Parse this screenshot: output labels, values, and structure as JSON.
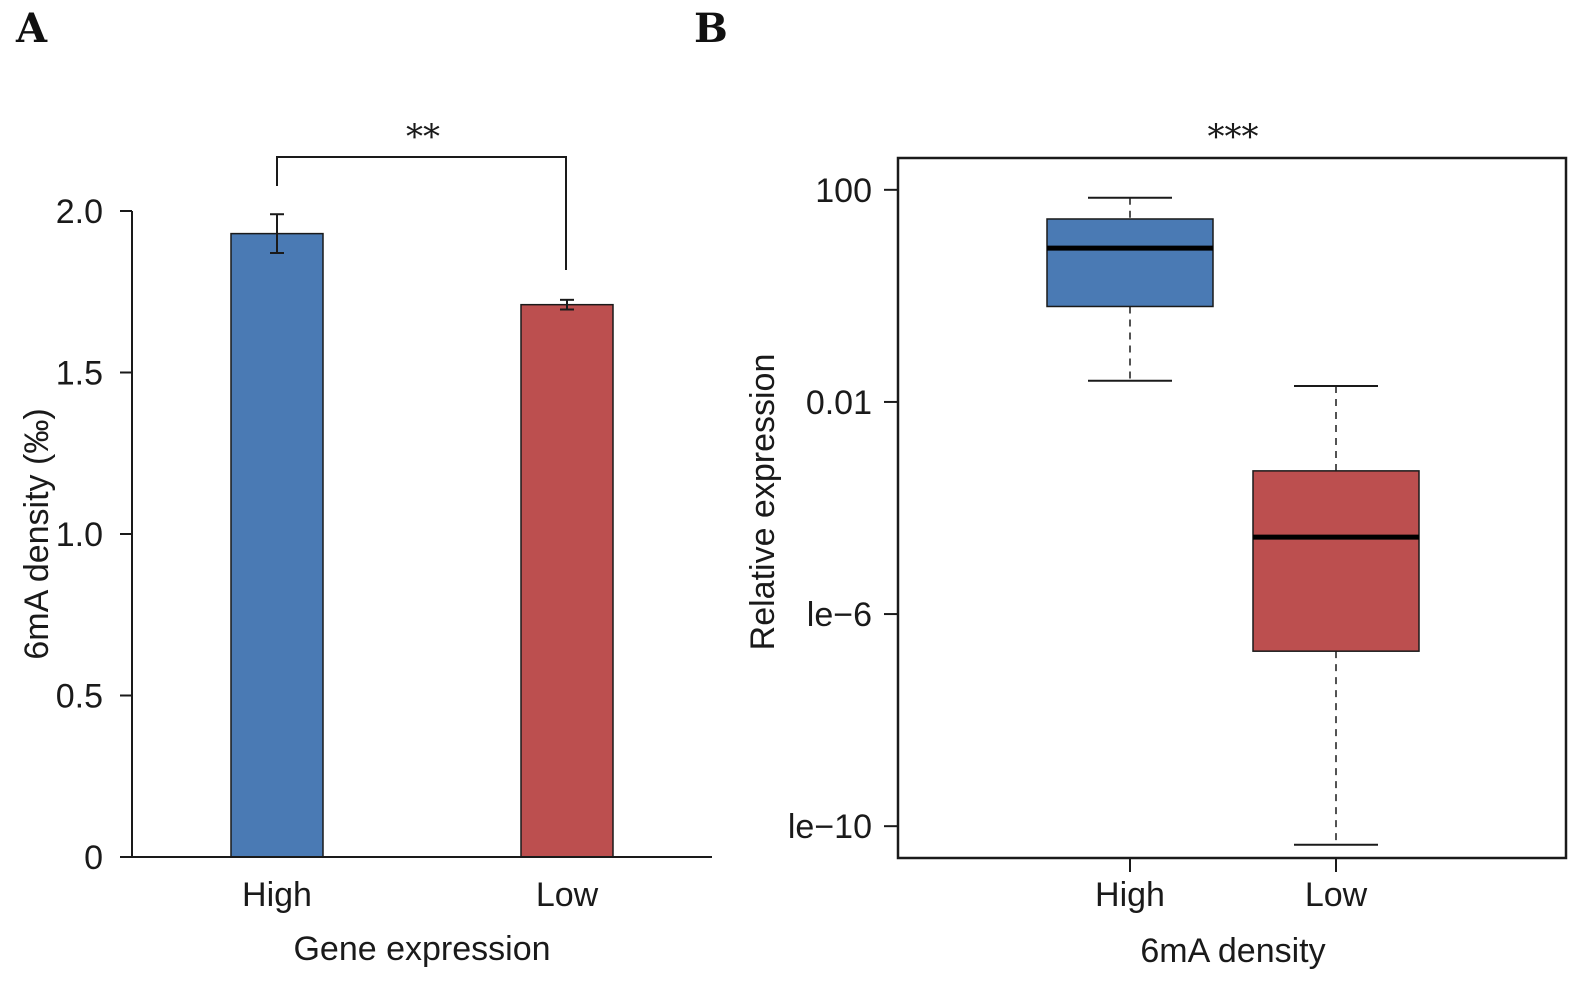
{
  "chart_data": [
    {
      "panel": "A",
      "type": "bar",
      "xlabel": "Gene expression",
      "ylabel": "6mA density (‰)",
      "categories": [
        "High",
        "Low"
      ],
      "values": [
        1.93,
        1.71
      ],
      "errors": [
        0.06,
        0.015
      ],
      "colors": [
        "#4a7ab4",
        "#bc4f4f"
      ],
      "ylim": [
        0,
        2.0
      ],
      "yticks": [
        0,
        0.5,
        1.0,
        1.5,
        2.0
      ],
      "ytick_labels": [
        "0",
        "0.5",
        "1.0",
        "1.5",
        "2.0"
      ],
      "significance": "**"
    },
    {
      "panel": "B",
      "type": "boxplot",
      "xlabel": "6mA density",
      "ylabel": "Relative expression",
      "scale": "log10",
      "categories": [
        "High",
        "Low"
      ],
      "colors": [
        "#4a7ab4",
        "#bc4f4f"
      ],
      "boxes": [
        {
          "name": "High",
          "whisker_low_log10": -1.6,
          "q1_log10": -0.2,
          "median_log10": 0.9,
          "q3_log10": 1.45,
          "whisker_high_log10": 1.85
        },
        {
          "name": "Low",
          "whisker_low_log10": -10.35,
          "q1_log10": -6.7,
          "median_log10": -4.55,
          "q3_log10": -3.3,
          "whisker_high_log10": -1.7
        }
      ],
      "ylim_log10": [
        -10.6,
        2.6
      ],
      "yticks_log10": [
        2,
        -2,
        -6,
        -10
      ],
      "ytick_labels": [
        "100",
        "0.01",
        "le−6",
        "le−10"
      ],
      "significance": "***"
    }
  ]
}
